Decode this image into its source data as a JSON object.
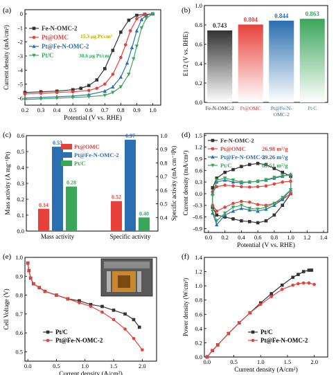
{
  "colors": {
    "fe": "#333333",
    "pt_omc": "#e8413a",
    "pt_fe": "#2b6fb0",
    "ptc": "#3aa65a",
    "axis": "#000000"
  },
  "chart_data": [
    {
      "id": "a",
      "panel_label": "(a)",
      "type": "line",
      "xlabel": "Potential (V vs. RHE)",
      "ylabel": "Current density (mA/cm²)",
      "xlim": [
        0.2,
        1.05
      ],
      "ylim": [
        -6.5,
        0.3
      ],
      "xticks": [
        "0.2",
        "0.3",
        "0.4",
        "0.5",
        "0.6",
        "0.7",
        "0.8",
        "0.9",
        "1.0"
      ],
      "yticks": [
        "0",
        "-1",
        "-2",
        "-3",
        "-4",
        "-5",
        "-6"
      ],
      "annotations": [
        "15.3 μg Pt/cm²",
        "30.6 μg Pt/cm²"
      ],
      "series": [
        {
          "name": "Fe-N-OMC-2",
          "color_key": "fe",
          "marker": "square",
          "x": [
            0.2,
            0.3,
            0.4,
            0.5,
            0.55,
            0.6,
            0.65,
            0.7,
            0.75,
            0.8,
            0.85,
            0.9,
            0.95,
            1.0
          ],
          "y": [
            -5.6,
            -5.55,
            -5.5,
            -5.4,
            -5.3,
            -5.1,
            -4.7,
            -3.9,
            -2.6,
            -1.3,
            -0.45,
            -0.1,
            -0.03,
            0
          ]
        },
        {
          "name": "Pt@OMC",
          "color_key": "pt_omc",
          "marker": "circle",
          "x": [
            0.2,
            0.3,
            0.4,
            0.5,
            0.6,
            0.65,
            0.7,
            0.75,
            0.8,
            0.83,
            0.86,
            0.9,
            0.95,
            1.0
          ],
          "y": [
            -5.7,
            -5.65,
            -5.6,
            -5.55,
            -5.45,
            -5.3,
            -5.0,
            -4.3,
            -3.1,
            -2.2,
            -1.2,
            -0.35,
            -0.05,
            0
          ]
        },
        {
          "name": "Pt@Fe-N-OMC-2",
          "color_key": "pt_fe",
          "marker": "triangle-up",
          "x": [
            0.2,
            0.3,
            0.4,
            0.5,
            0.6,
            0.7,
            0.75,
            0.8,
            0.84,
            0.87,
            0.9,
            0.93,
            0.96,
            1.0
          ],
          "y": [
            -6.0,
            -5.95,
            -5.9,
            -5.85,
            -5.75,
            -5.5,
            -5.2,
            -4.5,
            -3.5,
            -2.4,
            -1.2,
            -0.4,
            -0.1,
            0
          ]
        },
        {
          "name": "Pt/C",
          "color_key": "ptc",
          "marker": "triangle-down",
          "x": [
            0.2,
            0.3,
            0.4,
            0.5,
            0.6,
            0.7,
            0.75,
            0.8,
            0.85,
            0.88,
            0.9,
            0.93,
            0.96,
            1.0
          ],
          "y": [
            -6.1,
            -6.05,
            -6.0,
            -5.95,
            -5.9,
            -5.8,
            -5.6,
            -5.2,
            -4.3,
            -3.2,
            -2.3,
            -1.0,
            -0.3,
            0
          ]
        }
      ]
    },
    {
      "id": "b",
      "panel_label": "(b)",
      "type": "bar",
      "ylabel": "E1/2 (V vs. RHE)",
      "ylim": [
        0.0,
        1.0
      ],
      "yticks": [
        "0.0",
        "0.2",
        "0.4",
        "0.6",
        "0.8",
        "1.0"
      ],
      "categories": [
        "Fe-N-OMC-2",
        "Pt@OMC",
        "Pt@Fe-N-OMC-2",
        "Pt/C"
      ],
      "values": [
        0.743,
        0.804,
        0.844,
        0.863
      ],
      "value_labels": [
        "0.743",
        "0.804",
        "0.844",
        "0.863"
      ],
      "bar_color_keys": [
        "fe",
        "pt_omc",
        "pt_fe",
        "ptc"
      ]
    },
    {
      "id": "c",
      "panel_label": "(c)",
      "type": "bar",
      "ylabel_left": "Mass activity (A mg⁻¹Pt)",
      "ylabel_right": "Specific activity (mA cm⁻²Pt)",
      "ylim_left": [
        0.0,
        0.6
      ],
      "yticks_left": [
        "0.0",
        "0.1",
        "0.2",
        "0.3",
        "0.4",
        "0.5",
        "0.6"
      ],
      "ylim_right": [
        0.3,
        1.0
      ],
      "yticks_right": [
        "0.4",
        "0.5",
        "0.6",
        "0.7",
        "0.8",
        "0.9",
        "1.0"
      ],
      "categories": [
        "Mass activity",
        "Specific activity"
      ],
      "series": [
        {
          "name": "Pt@OMC",
          "color_key": "pt_omc",
          "values": [
            0.14,
            0.52
          ],
          "labels": [
            "0.14",
            "0.52"
          ]
        },
        {
          "name": "Pt@Fe-N-OMC-2",
          "color_key": "pt_fe",
          "values": [
            0.53,
            0.97
          ],
          "labels": [
            "0.53",
            "0.97"
          ]
        },
        {
          "name": "Pt/C",
          "color_key": "ptc",
          "values": [
            0.28,
            0.4
          ],
          "labels": [
            "0.28",
            "0.40"
          ]
        }
      ]
    },
    {
      "id": "d",
      "panel_label": "(d)",
      "type": "line",
      "xlabel": "Potential (V vs. RHE)",
      "ylabel": "Current density (mA/cm²)",
      "xlim": [
        -0.05,
        1.45
      ],
      "ylim": [
        -1.0,
        1.55
      ],
      "xticks": [
        "0.0",
        "0.2",
        "0.4",
        "0.6",
        "0.8",
        "1.0",
        "1.2",
        "1.4"
      ],
      "yticks": [
        "1.5",
        "1.2",
        "0.9",
        "0.6",
        "0.3",
        "0.0",
        "-0.3",
        "-0.6",
        "-0.9"
      ],
      "series": [
        {
          "name": "Fe-N-OMC-2",
          "ecsa": "",
          "color_key": "fe",
          "marker": "square",
          "x": [
            0.05,
            0.1,
            0.2,
            0.3,
            0.4,
            0.5,
            0.6,
            0.7,
            0.8,
            0.9,
            1.0,
            1.0,
            0.9,
            0.8,
            0.7,
            0.6,
            0.5,
            0.4,
            0.3,
            0.2,
            0.1,
            0.05,
            0.05
          ],
          "y": [
            0.15,
            0.4,
            0.55,
            0.62,
            0.7,
            0.75,
            0.78,
            0.75,
            0.65,
            0.55,
            0.45,
            0.0,
            -0.3,
            -0.55,
            -0.7,
            -0.75,
            -0.72,
            -0.7,
            -0.65,
            -0.6,
            -0.55,
            -0.35,
            0.15
          ]
        },
        {
          "name": "Pt@OMC",
          "ecsa": "26.98 m²/g",
          "color_key": "pt_omc",
          "marker": "circle",
          "x": [
            0.05,
            0.1,
            0.2,
            0.3,
            0.4,
            0.5,
            0.6,
            0.7,
            0.8,
            0.9,
            1.0,
            1.0,
            0.9,
            0.8,
            0.7,
            0.6,
            0.5,
            0.4,
            0.3,
            0.2,
            0.1,
            0.05,
            0.05
          ],
          "y": [
            0.05,
            0.18,
            0.22,
            0.2,
            0.18,
            0.17,
            0.18,
            0.2,
            0.25,
            0.3,
            0.32,
            0.0,
            -0.15,
            -0.25,
            -0.3,
            -0.28,
            -0.22,
            -0.2,
            -0.25,
            -0.35,
            -0.45,
            -0.3,
            0.05
          ]
        },
        {
          "name": "Pt@Fe-N-OMC-2",
          "ecsa": "59.26 m²/g",
          "color_key": "pt_fe",
          "marker": "triangle-up",
          "x": [
            0.05,
            0.1,
            0.2,
            0.3,
            0.4,
            0.5,
            0.6,
            0.7,
            0.8,
            0.9,
            1.0,
            1.0,
            0.9,
            0.8,
            0.7,
            0.6,
            0.5,
            0.4,
            0.3,
            0.2,
            0.1,
            0.05,
            0.05
          ],
          "y": [
            0.0,
            0.3,
            0.35,
            0.3,
            0.28,
            0.3,
            0.32,
            0.35,
            0.4,
            0.45,
            0.5,
            0.1,
            -0.15,
            -0.3,
            -0.4,
            -0.45,
            -0.42,
            -0.38,
            -0.45,
            -0.55,
            -0.8,
            -0.5,
            0.0
          ]
        },
        {
          "name": "Pt/C",
          "ecsa": "69.51 m²/g",
          "color_key": "ptc",
          "marker": "triangle-down",
          "x": [
            0.05,
            0.1,
            0.2,
            0.3,
            0.4,
            0.5,
            0.6,
            0.7,
            0.8,
            0.9,
            1.0,
            1.0,
            0.9,
            0.8,
            0.7,
            0.6,
            0.5,
            0.4,
            0.3,
            0.2,
            0.1,
            0.05,
            0.05
          ],
          "y": [
            -0.05,
            0.35,
            0.4,
            0.35,
            0.3,
            0.3,
            0.32,
            0.36,
            0.42,
            0.46,
            0.48,
            0.1,
            -0.1,
            -0.25,
            -0.35,
            -0.4,
            -0.38,
            -0.3,
            -0.35,
            -0.5,
            -0.7,
            -0.45,
            -0.05
          ]
        }
      ]
    },
    {
      "id": "e",
      "panel_label": "(e)",
      "type": "line",
      "xlabel": "Current density (A/cm²)",
      "ylabel": "Cell Voltage (V)",
      "xlim": [
        -0.05,
        2.25
      ],
      "ylim": [
        0.45,
        1.0
      ],
      "xticks": [
        "0.0",
        "0.5",
        "1.0",
        "1.5",
        "2.0"
      ],
      "yticks": [
        "1.0",
        "0.9",
        "0.8",
        "0.7",
        "0.6",
        "0.5"
      ],
      "series": [
        {
          "name": "Pt/C",
          "color_key": "fe",
          "marker": "square",
          "x": [
            0.0,
            0.02,
            0.05,
            0.1,
            0.2,
            0.3,
            0.5,
            0.7,
            0.9,
            1.1,
            1.3,
            1.5,
            1.7,
            1.85,
            1.95
          ],
          "y": [
            0.97,
            0.93,
            0.89,
            0.86,
            0.84,
            0.82,
            0.8,
            0.78,
            0.77,
            0.75,
            0.74,
            0.72,
            0.7,
            0.67,
            0.63
          ]
        },
        {
          "name": "Pt@Fe-N-OMC-2",
          "color_key": "pt_omc",
          "marker": "circle",
          "x": [
            0.0,
            0.02,
            0.05,
            0.1,
            0.2,
            0.3,
            0.5,
            0.7,
            0.9,
            1.1,
            1.3,
            1.5,
            1.7,
            1.85,
            2.0
          ],
          "y": [
            0.97,
            0.93,
            0.89,
            0.86,
            0.84,
            0.82,
            0.8,
            0.78,
            0.76,
            0.74,
            0.71,
            0.67,
            0.62,
            0.57,
            0.51
          ]
        }
      ]
    },
    {
      "id": "f",
      "panel_label": "(f)",
      "type": "line",
      "xlabel": "Current density (A/cm²)",
      "ylabel": "Power density (W/cm²)",
      "xlim": [
        -0.05,
        2.25
      ],
      "ylim": [
        0.0,
        1.4
      ],
      "xticks": [
        "0.0",
        "0.5",
        "1.0",
        "1.5",
        "2.0"
      ],
      "yticks": [
        "1.4",
        "1.2",
        "1.0",
        "0.8",
        "0.6",
        "0.4",
        "0.2",
        "0.0"
      ],
      "series": [
        {
          "name": "Pt/C",
          "color_key": "fe",
          "marker": "square",
          "x": [
            0.0,
            0.1,
            0.2,
            0.4,
            0.6,
            0.8,
            1.0,
            1.2,
            1.4,
            1.6,
            1.7,
            1.8,
            1.9,
            1.95
          ],
          "y": [
            0.0,
            0.09,
            0.17,
            0.33,
            0.48,
            0.62,
            0.76,
            0.89,
            1.01,
            1.12,
            1.16,
            1.2,
            1.22,
            1.22
          ]
        },
        {
          "name": "Pt@Fe-N-OMC-2",
          "color_key": "pt_omc",
          "marker": "circle",
          "x": [
            0.0,
            0.1,
            0.2,
            0.4,
            0.6,
            0.8,
            1.0,
            1.2,
            1.4,
            1.6,
            1.7,
            1.8,
            1.9,
            2.0
          ],
          "y": [
            0.0,
            0.09,
            0.17,
            0.33,
            0.48,
            0.62,
            0.74,
            0.85,
            0.95,
            1.01,
            1.03,
            1.04,
            1.04,
            1.02
          ]
        }
      ]
    }
  ]
}
